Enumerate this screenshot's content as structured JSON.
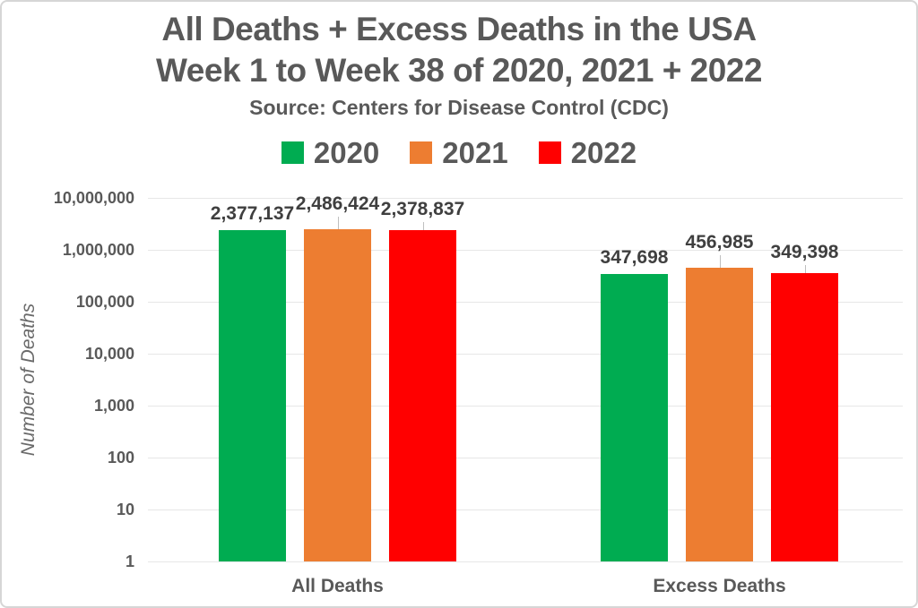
{
  "title": {
    "line1": "All Deaths + Excess Deaths in the USA",
    "line2": "Week 1 to Week 38 of 2020, 2021 + 2022",
    "source": "Source: Centers for Disease Control (CDC)"
  },
  "chart_data": {
    "type": "bar",
    "title": "All Deaths + Excess Deaths in the USA",
    "subtitle": "Week 1 to Week 38 of 2020, 2021 + 2022",
    "source": "Source: Centers for Disease Control (CDC)",
    "ylabel": "Number of Deaths",
    "xlabel": "",
    "y_scale": "log",
    "ylim": [
      1,
      10000000
    ],
    "grid": true,
    "legend_position": "top",
    "categories": [
      "All Deaths",
      "Excess Deaths"
    ],
    "yticks": [
      "10,000,000",
      "1,000,000",
      "100,000",
      "10,000",
      "1,000",
      "100",
      "10",
      "1"
    ],
    "series": [
      {
        "name": "2020",
        "color": "#00ac51",
        "values": [
          2377137,
          347698
        ],
        "labels": [
          "2,377,137",
          "347,698"
        ]
      },
      {
        "name": "2021",
        "color": "#ed7d31",
        "values": [
          2486424,
          456985
        ],
        "labels": [
          "2,486,424",
          "456,985"
        ]
      },
      {
        "name": "2022",
        "color": "#ff0000",
        "values": [
          2378837,
          349398
        ],
        "labels": [
          "2,378,837",
          "349,398"
        ]
      }
    ]
  }
}
